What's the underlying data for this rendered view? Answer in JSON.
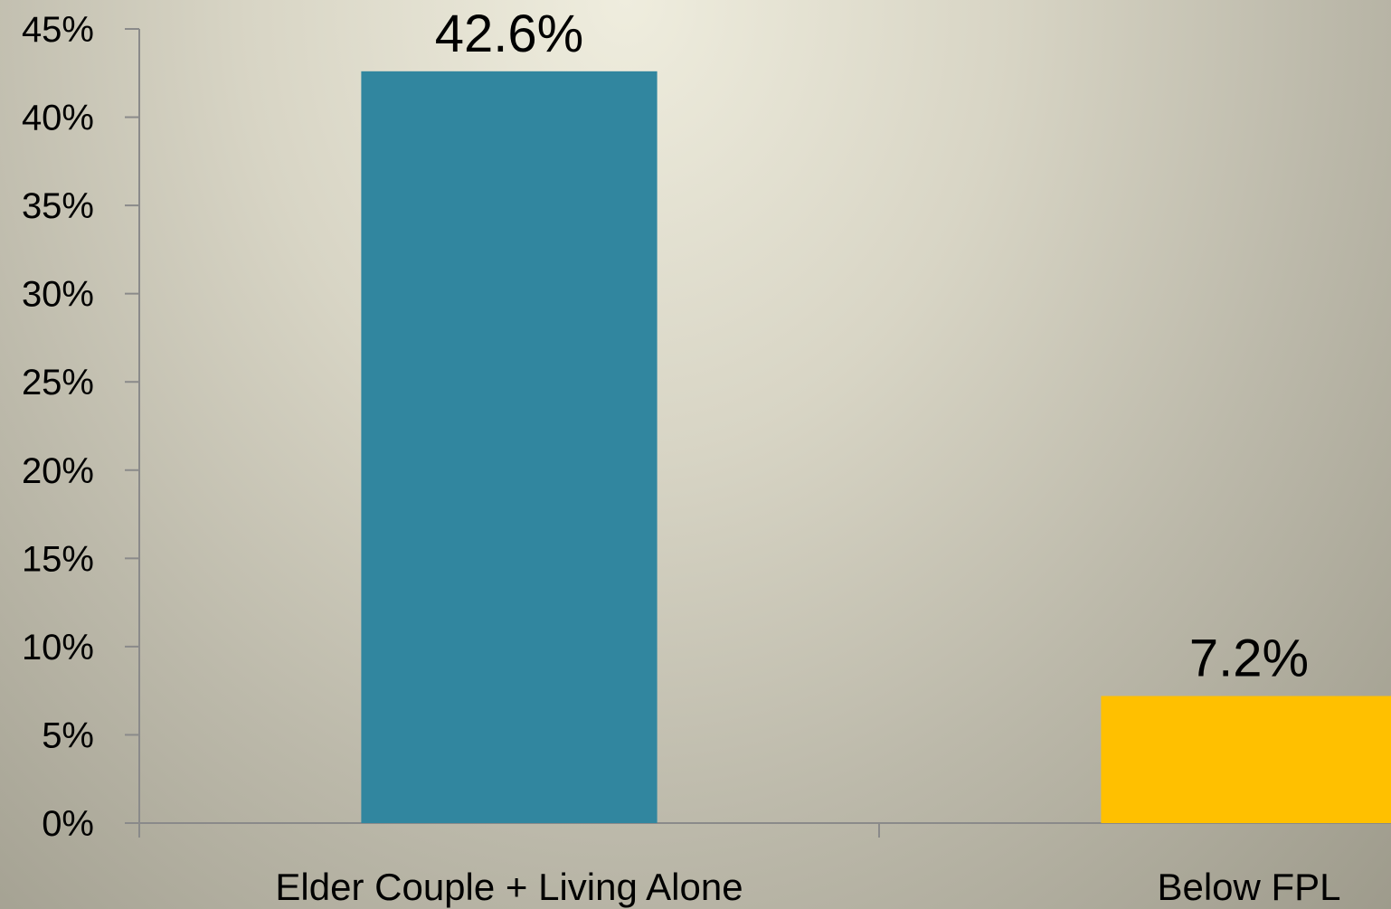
{
  "chart_data": {
    "type": "bar",
    "title": "",
    "xlabel": "",
    "ylabel": "",
    "categories": [
      "Elder Couple + Living Alone",
      "Below FPL"
    ],
    "values": [
      42.6,
      7.2
    ],
    "value_labels": [
      "42.6%",
      "7.2%"
    ],
    "colors": [
      "#31869f",
      "#ffc000"
    ],
    "ylim": [
      0,
      45
    ],
    "y_ticks": [
      0,
      5,
      10,
      15,
      20,
      25,
      30,
      35,
      40,
      45
    ],
    "y_tick_labels": [
      "0%",
      "5%",
      "10%",
      "15%",
      "20%",
      "25%",
      "30%",
      "35%",
      "40%",
      "45%"
    ],
    "grid": false,
    "legend": "none"
  }
}
